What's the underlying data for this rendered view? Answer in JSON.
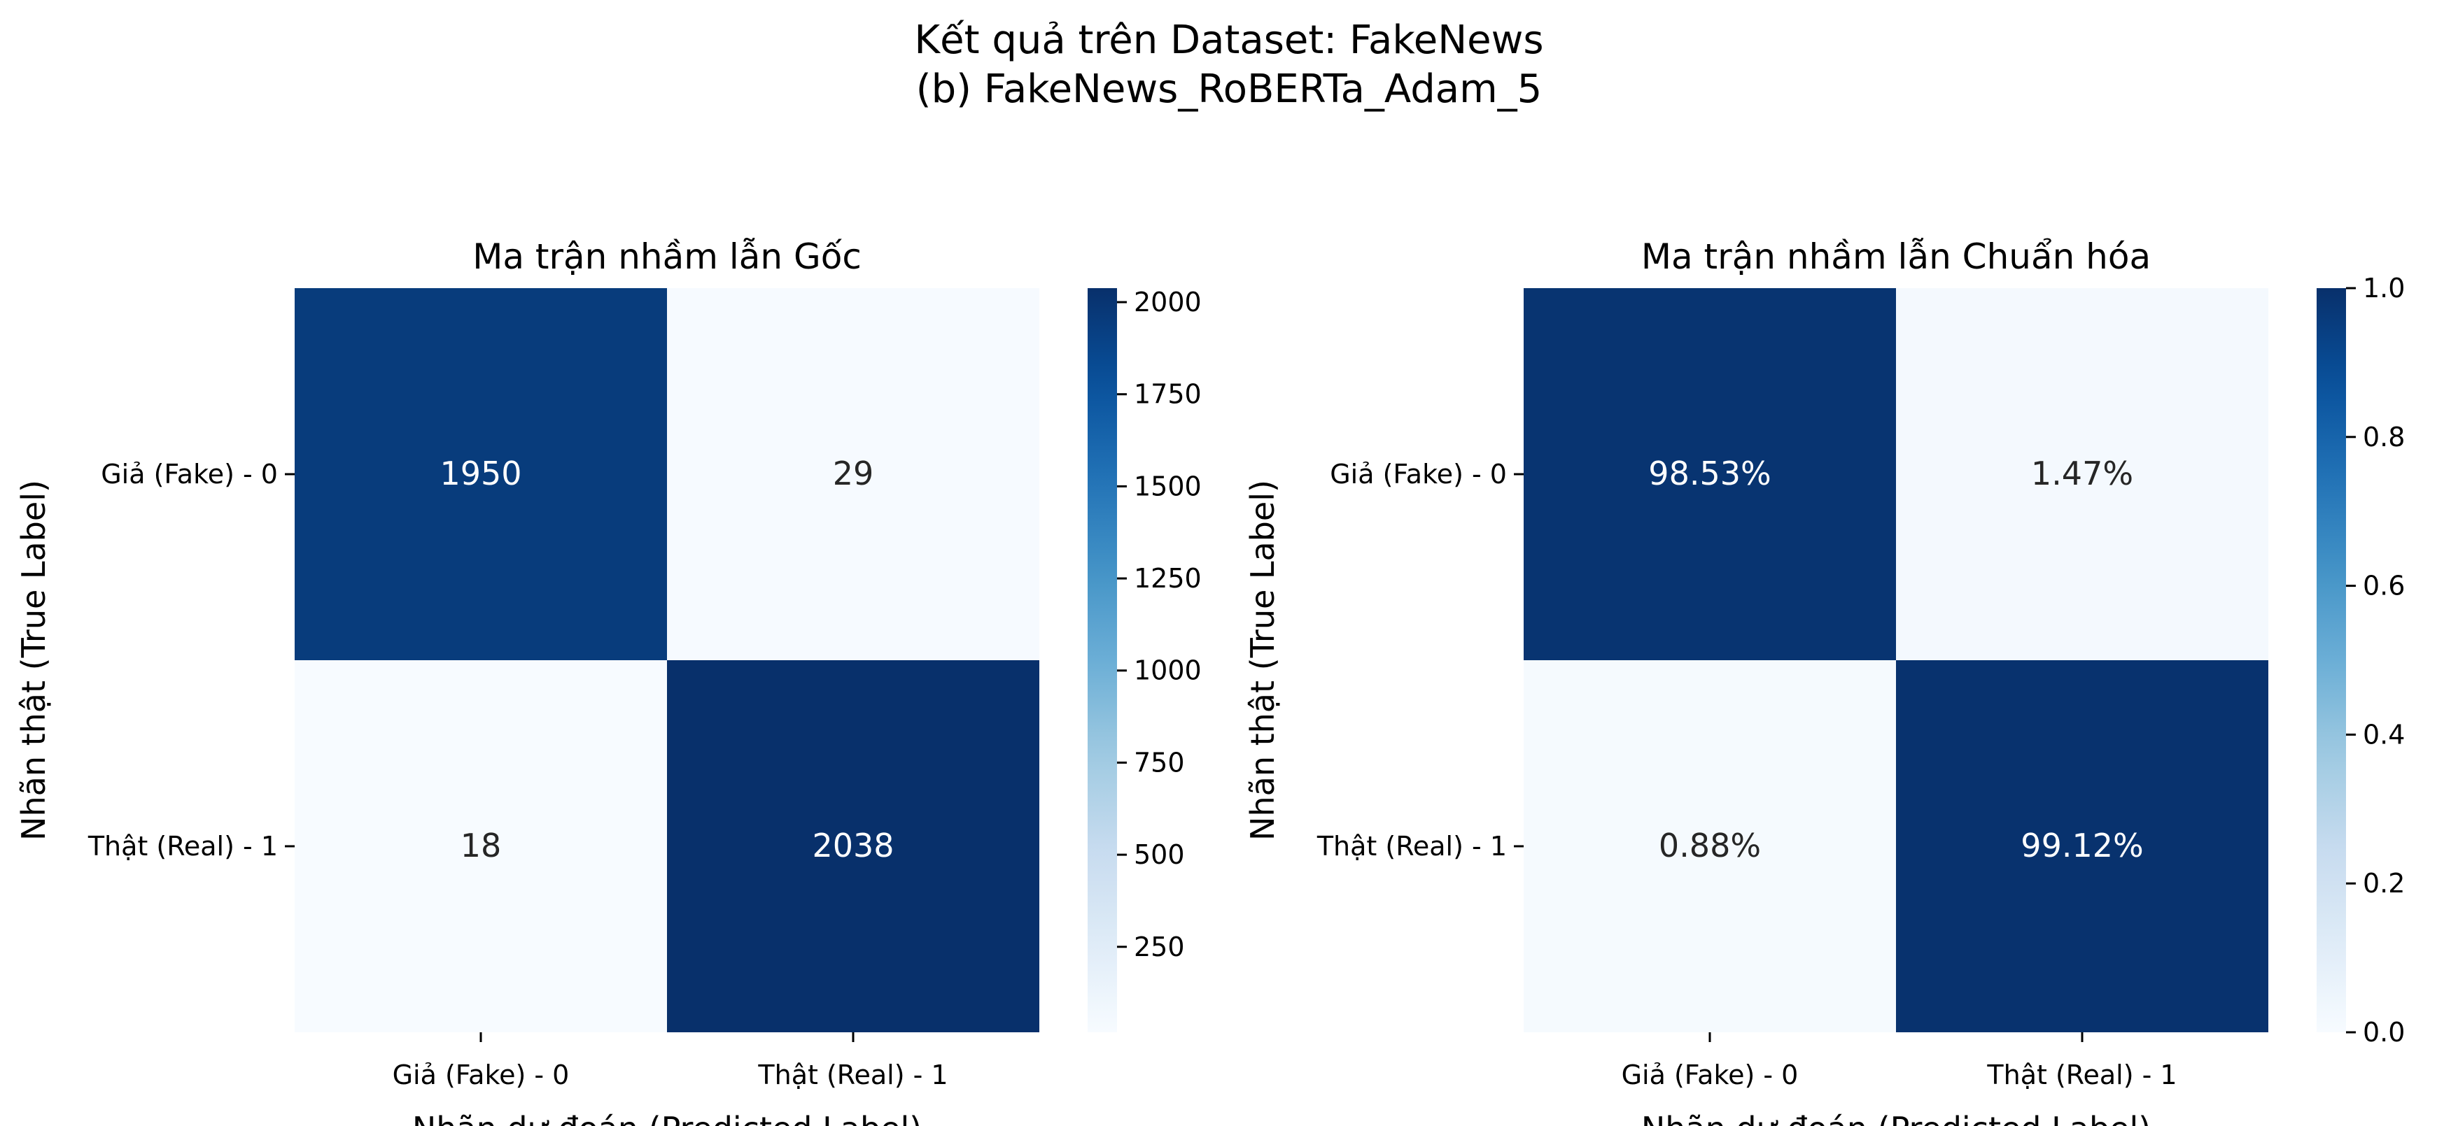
{
  "figure": {
    "suptitle_line1": "Kết quả trên Dataset: FakeNews",
    "suptitle_line2": "(b) FakeNews_RoBERTa_Adam_5"
  },
  "chart_data": [
    {
      "type": "heatmap",
      "title": "Ma trận nhầm lẫn Gốc",
      "xlabel": "Nhãn dự đoán (Predicted Label)",
      "ylabel": "Nhãn thật (True Label)",
      "x_categories": [
        "Giả (Fake) - 0",
        "Thật (Real) - 1"
      ],
      "y_categories": [
        "Giả (Fake) - 0",
        "Thật (Real) - 1"
      ],
      "values": [
        [
          1950,
          29
        ],
        [
          18,
          2038
        ]
      ],
      "cell_labels": [
        [
          "1950",
          "29"
        ],
        [
          "18",
          "2038"
        ]
      ],
      "colormap": "Blues",
      "colorbar": {
        "vmin": 18,
        "vmax": 2038,
        "ticks": [
          250,
          500,
          750,
          1000,
          1250,
          1500,
          1750,
          2000
        ],
        "tick_labels": [
          "250",
          "500",
          "750",
          "1000",
          "1250",
          "1500",
          "1750",
          "2000"
        ]
      }
    },
    {
      "type": "heatmap",
      "title": "Ma trận nhầm lẫn Chuẩn hóa",
      "xlabel": "Nhãn dự đoán (Predicted Label)",
      "ylabel": "Nhãn thật (True Label)",
      "x_categories": [
        "Giả (Fake) - 0",
        "Thật (Real) - 1"
      ],
      "y_categories": [
        "Giả (Fake) - 0",
        "Thật (Real) - 1"
      ],
      "values": [
        [
          0.9853,
          0.0147
        ],
        [
          0.0088,
          0.9912
        ]
      ],
      "cell_labels": [
        [
          "98.53%",
          "1.47%"
        ],
        [
          "0.88%",
          "99.12%"
        ]
      ],
      "colormap": "Blues",
      "colorbar": {
        "vmin": 0.0,
        "vmax": 1.0,
        "ticks": [
          0.0,
          0.2,
          0.4,
          0.6,
          0.8,
          1.0
        ],
        "tick_labels": [
          "0.0",
          "0.2",
          "0.4",
          "0.6",
          "0.8",
          "1.0"
        ]
      }
    }
  ]
}
